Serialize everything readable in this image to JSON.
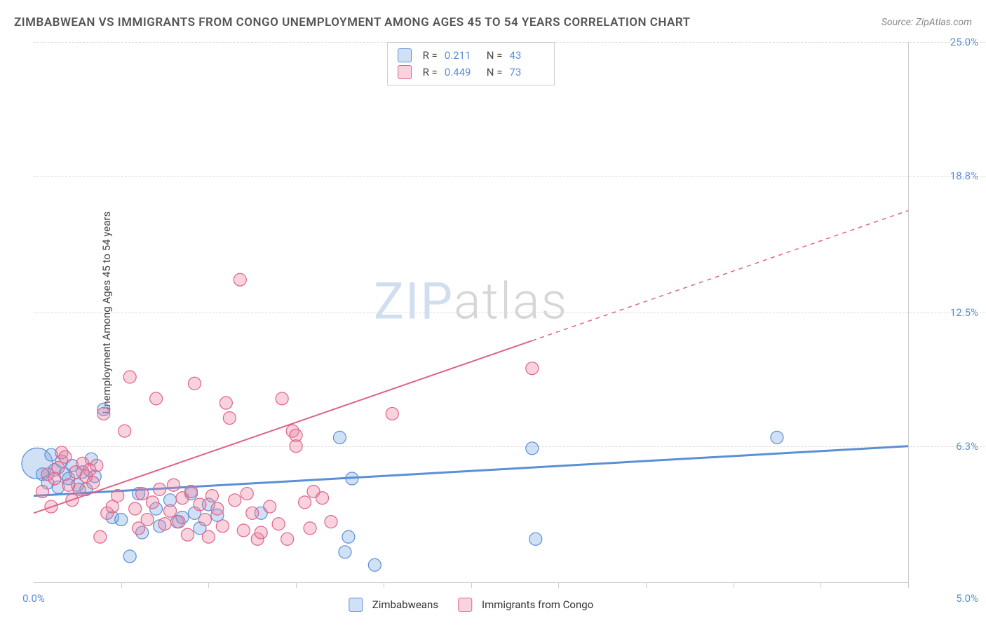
{
  "title": "ZIMBABWEAN VS IMMIGRANTS FROM CONGO UNEMPLOYMENT AMONG AGES 45 TO 54 YEARS CORRELATION CHART",
  "source": "Source: ZipAtlas.com",
  "ylabel": "Unemployment Among Ages 45 to 54 years",
  "watermark_zip": "ZIP",
  "watermark_atlas": "atlas",
  "chart": {
    "type": "scatter",
    "xlim": [
      0,
      5
    ],
    "ylim": [
      0,
      25
    ],
    "x_left_label": "0.0%",
    "x_right_label": "5.0%",
    "y_ticks": [
      {
        "v": 6.3,
        "label": "6.3%"
      },
      {
        "v": 12.5,
        "label": "12.5%"
      },
      {
        "v": 18.8,
        "label": "18.8%"
      },
      {
        "v": 25.0,
        "label": "25.0%"
      }
    ],
    "x_tick_positions": [
      0.5,
      1.0,
      1.5,
      2.0,
      2.5,
      3.0,
      3.5,
      4.0,
      4.5,
      5.0
    ],
    "background_color": "#ffffff",
    "grid_color": "#dddddd",
    "axis_color": "#cccccc",
    "series": [
      {
        "id": "zimbabweans",
        "label": "Zimbabweans",
        "color_fill": "rgba(120,170,225,0.35)",
        "color_stroke": "#5b8fd6",
        "marker_radius": 9,
        "R": "0.211",
        "N": "43",
        "trend": {
          "x1": 0,
          "y1": 4.0,
          "x2": 5.0,
          "y2": 6.3,
          "solid_until_x": 5.0,
          "stroke_width": 3
        },
        "points": [
          {
            "x": 0.02,
            "y": 5.5,
            "r": 22
          },
          {
            "x": 0.05,
            "y": 5.0
          },
          {
            "x": 0.08,
            "y": 4.6
          },
          {
            "x": 0.1,
            "y": 5.9
          },
          {
            "x": 0.12,
            "y": 5.2
          },
          {
            "x": 0.14,
            "y": 4.4
          },
          {
            "x": 0.16,
            "y": 5.6
          },
          {
            "x": 0.18,
            "y": 5.0
          },
          {
            "x": 0.2,
            "y": 4.8
          },
          {
            "x": 0.22,
            "y": 5.4
          },
          {
            "x": 0.25,
            "y": 4.5
          },
          {
            "x": 0.28,
            "y": 5.1
          },
          {
            "x": 0.3,
            "y": 4.3
          },
          {
            "x": 0.33,
            "y": 5.7
          },
          {
            "x": 0.35,
            "y": 4.9
          },
          {
            "x": 0.4,
            "y": 8.0
          },
          {
            "x": 0.45,
            "y": 3.0
          },
          {
            "x": 0.5,
            "y": 2.9
          },
          {
            "x": 0.55,
            "y": 1.2
          },
          {
            "x": 0.6,
            "y": 4.1
          },
          {
            "x": 0.62,
            "y": 2.3
          },
          {
            "x": 0.7,
            "y": 3.4
          },
          {
            "x": 0.72,
            "y": 2.6
          },
          {
            "x": 0.78,
            "y": 3.8
          },
          {
            "x": 0.82,
            "y": 2.8
          },
          {
            "x": 0.85,
            "y": 3.0
          },
          {
            "x": 0.9,
            "y": 4.1
          },
          {
            "x": 0.92,
            "y": 3.2
          },
          {
            "x": 0.95,
            "y": 2.5
          },
          {
            "x": 1.0,
            "y": 3.6
          },
          {
            "x": 1.05,
            "y": 3.1
          },
          {
            "x": 1.3,
            "y": 3.2
          },
          {
            "x": 1.75,
            "y": 6.7
          },
          {
            "x": 1.78,
            "y": 1.4
          },
          {
            "x": 1.8,
            "y": 2.1
          },
          {
            "x": 1.82,
            "y": 4.8
          },
          {
            "x": 1.95,
            "y": 0.8
          },
          {
            "x": 2.85,
            "y": 6.2
          },
          {
            "x": 2.87,
            "y": 2.0
          },
          {
            "x": 4.25,
            "y": 6.7
          }
        ]
      },
      {
        "id": "congo",
        "label": "Immigrants from Congo",
        "color_fill": "rgba(235,130,160,0.35)",
        "color_stroke": "#e06289",
        "marker_radius": 9,
        "R": "0.449",
        "N": "73",
        "trend": {
          "x1": 0,
          "y1": 3.2,
          "x2": 5.0,
          "y2": 17.2,
          "solid_until_x": 2.85,
          "stroke_width": 2
        },
        "points": [
          {
            "x": 0.05,
            "y": 4.2
          },
          {
            "x": 0.08,
            "y": 5.0
          },
          {
            "x": 0.1,
            "y": 3.5
          },
          {
            "x": 0.12,
            "y": 4.8
          },
          {
            "x": 0.14,
            "y": 5.3
          },
          {
            "x": 0.16,
            "y": 6.0
          },
          {
            "x": 0.18,
            "y": 5.8
          },
          {
            "x": 0.2,
            "y": 4.5
          },
          {
            "x": 0.22,
            "y": 3.8
          },
          {
            "x": 0.24,
            "y": 5.1
          },
          {
            "x": 0.26,
            "y": 4.3
          },
          {
            "x": 0.28,
            "y": 5.5
          },
          {
            "x": 0.3,
            "y": 4.9
          },
          {
            "x": 0.32,
            "y": 5.2
          },
          {
            "x": 0.34,
            "y": 4.6
          },
          {
            "x": 0.36,
            "y": 5.4
          },
          {
            "x": 0.38,
            "y": 2.1
          },
          {
            "x": 0.4,
            "y": 7.8
          },
          {
            "x": 0.42,
            "y": 3.2
          },
          {
            "x": 0.45,
            "y": 3.5
          },
          {
            "x": 0.48,
            "y": 4.0
          },
          {
            "x": 0.52,
            "y": 7.0
          },
          {
            "x": 0.55,
            "y": 9.5
          },
          {
            "x": 0.58,
            "y": 3.4
          },
          {
            "x": 0.6,
            "y": 2.5
          },
          {
            "x": 0.62,
            "y": 4.1
          },
          {
            "x": 0.65,
            "y": 2.9
          },
          {
            "x": 0.68,
            "y": 3.7
          },
          {
            "x": 0.7,
            "y": 8.5
          },
          {
            "x": 0.72,
            "y": 4.3
          },
          {
            "x": 0.75,
            "y": 2.7
          },
          {
            "x": 0.78,
            "y": 3.3
          },
          {
            "x": 0.8,
            "y": 4.5
          },
          {
            "x": 0.83,
            "y": 2.8
          },
          {
            "x": 0.85,
            "y": 3.9
          },
          {
            "x": 0.88,
            "y": 2.2
          },
          {
            "x": 0.9,
            "y": 4.2
          },
          {
            "x": 0.92,
            "y": 9.2
          },
          {
            "x": 0.95,
            "y": 3.6
          },
          {
            "x": 0.98,
            "y": 2.9
          },
          {
            "x": 1.0,
            "y": 2.1
          },
          {
            "x": 1.02,
            "y": 4.0
          },
          {
            "x": 1.05,
            "y": 3.4
          },
          {
            "x": 1.08,
            "y": 2.6
          },
          {
            "x": 1.1,
            "y": 8.3
          },
          {
            "x": 1.12,
            "y": 7.6
          },
          {
            "x": 1.15,
            "y": 3.8
          },
          {
            "x": 1.18,
            "y": 14.0
          },
          {
            "x": 1.2,
            "y": 2.4
          },
          {
            "x": 1.22,
            "y": 4.1
          },
          {
            "x": 1.25,
            "y": 3.2
          },
          {
            "x": 1.28,
            "y": 2.0
          },
          {
            "x": 1.3,
            "y": 2.3
          },
          {
            "x": 1.35,
            "y": 3.5
          },
          {
            "x": 1.4,
            "y": 2.7
          },
          {
            "x": 1.42,
            "y": 8.5
          },
          {
            "x": 1.45,
            "y": 2.0
          },
          {
            "x": 1.48,
            "y": 7.0
          },
          {
            "x": 1.5,
            "y": 6.8
          },
          {
            "x": 1.5,
            "y": 6.3
          },
          {
            "x": 1.55,
            "y": 3.7
          },
          {
            "x": 1.58,
            "y": 2.5
          },
          {
            "x": 1.6,
            "y": 4.2
          },
          {
            "x": 1.65,
            "y": 3.9
          },
          {
            "x": 1.7,
            "y": 2.8
          },
          {
            "x": 2.05,
            "y": 7.8
          },
          {
            "x": 2.85,
            "y": 9.9
          }
        ]
      }
    ]
  },
  "legend_top_labels": {
    "R": "R =",
    "N": "N ="
  },
  "legend_bottom": [
    {
      "key": "zimbabweans"
    },
    {
      "key": "congo"
    }
  ]
}
